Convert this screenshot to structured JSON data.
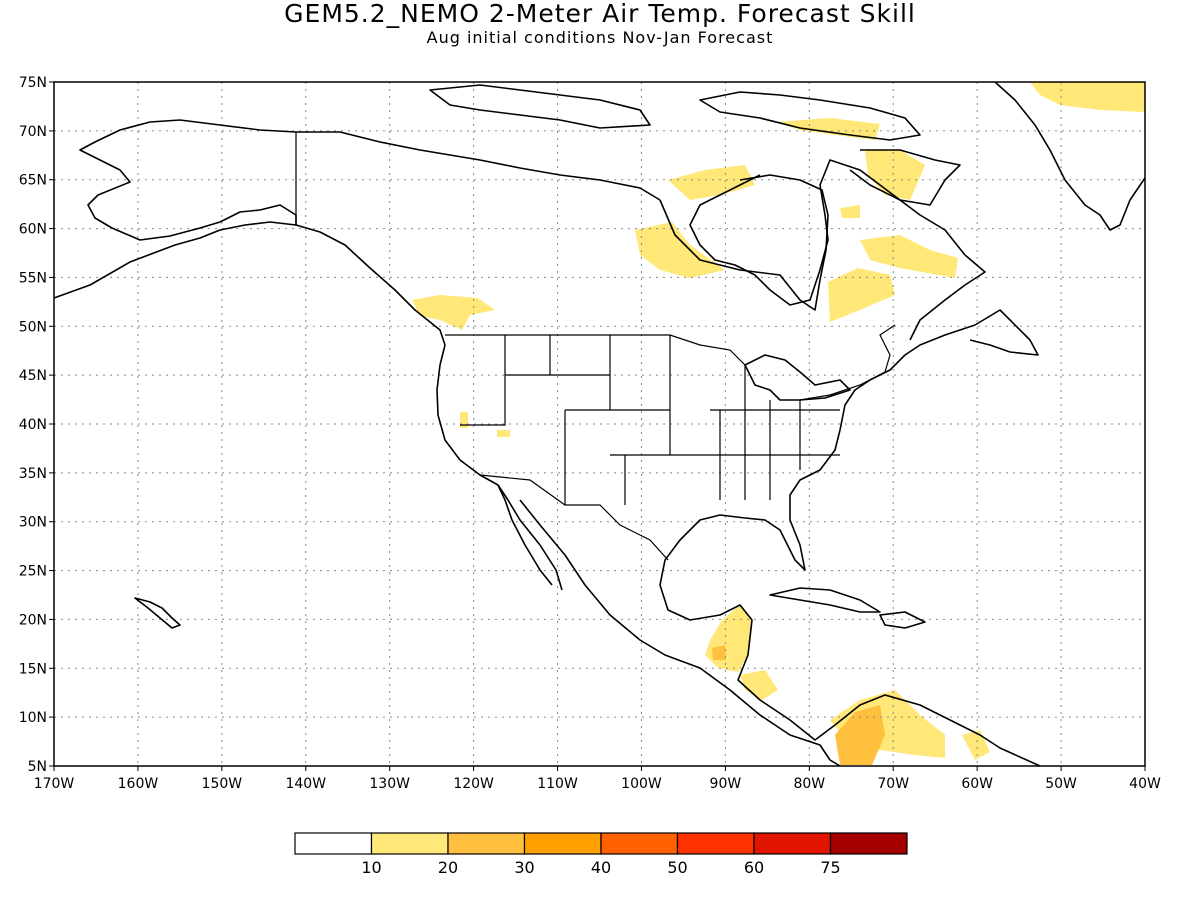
{
  "title": "GEM5.2_NEMO 2-Meter Air Temp. Forecast Skill",
  "subtitle": "Aug initial conditions  Nov-Jan Forecast",
  "map": {
    "lon_range": [
      -170,
      -40
    ],
    "lat_range": [
      5,
      75
    ],
    "lat_ticks": [
      "75N",
      "70N",
      "65N",
      "60N",
      "55N",
      "50N",
      "45N",
      "40N",
      "35N",
      "30N",
      "25N",
      "20N",
      "15N",
      "10N",
      "5N"
    ],
    "lon_ticks": [
      "170W",
      "160W",
      "150W",
      "140W",
      "130W",
      "120W",
      "110W",
      "100W",
      "90W",
      "80W",
      "70W",
      "60W",
      "50W",
      "40W"
    ],
    "grid": true
  },
  "legend": {
    "colors": [
      "#ffffff",
      "#ffe878",
      "#ffc040",
      "#ffa000",
      "#ff6000",
      "#ff3200",
      "#e11400",
      "#a50000"
    ],
    "labels": [
      "10",
      "20",
      "30",
      "40",
      "50",
      "60",
      "75"
    ]
  }
}
